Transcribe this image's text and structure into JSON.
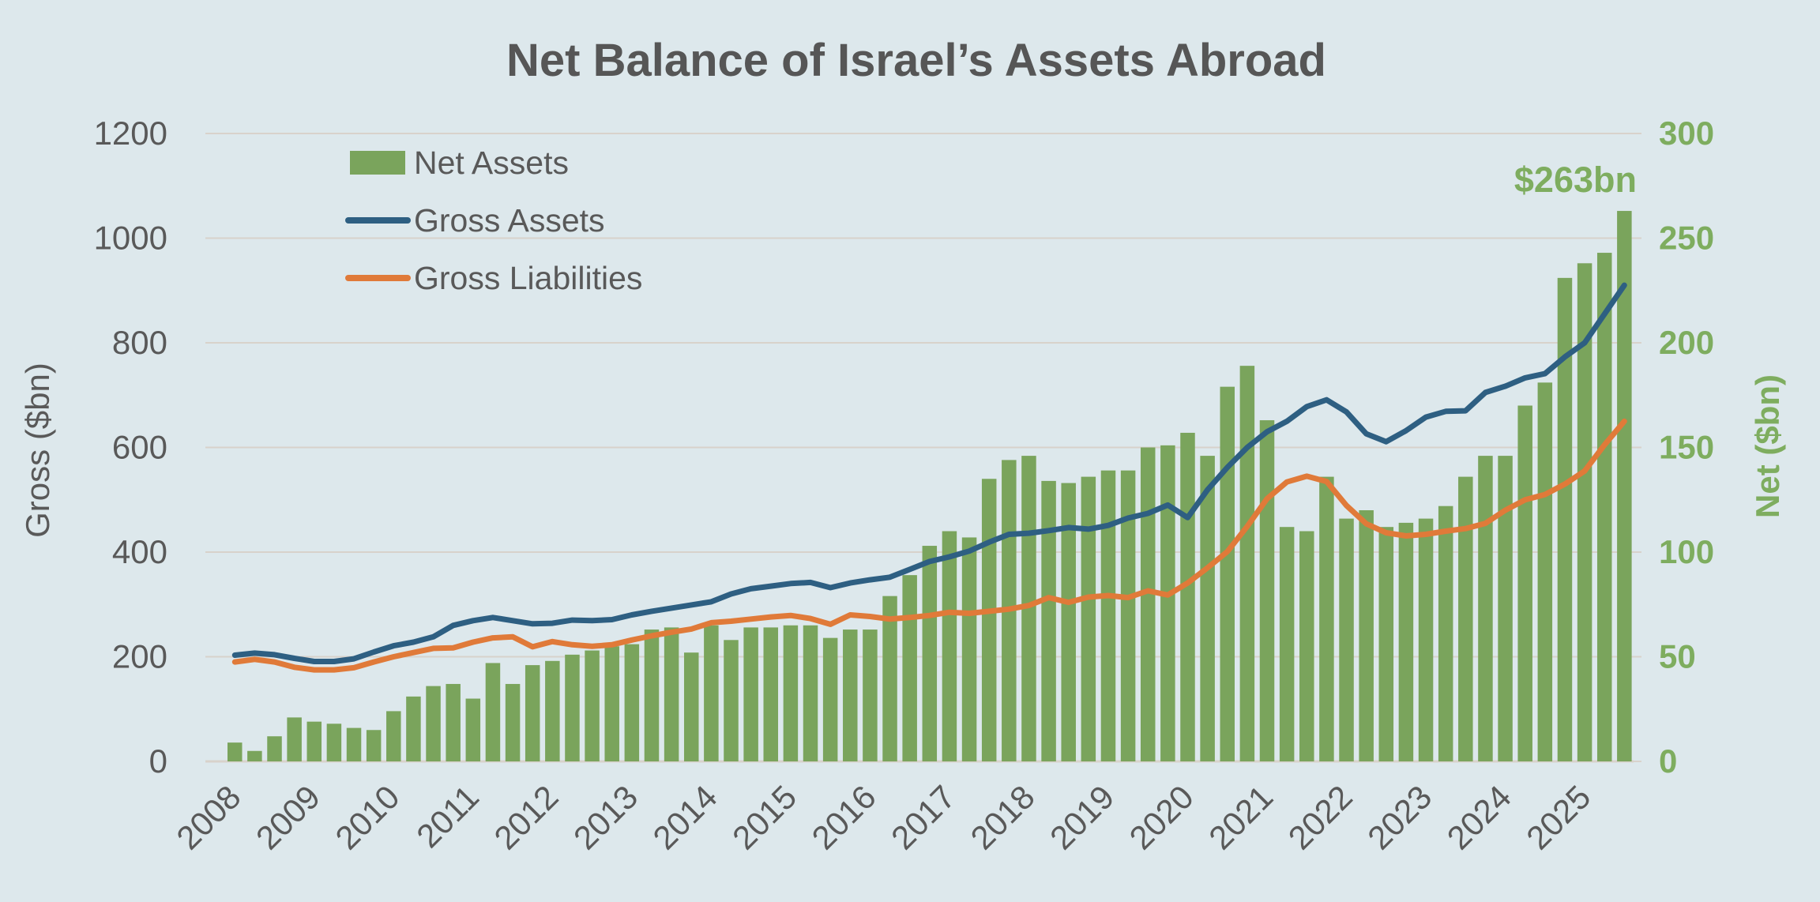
{
  "title": "Net Balance of Israel’s Assets Abroad",
  "annotation": {
    "text": "$263bn"
  },
  "legend": {
    "items": [
      {
        "label": "Net Assets",
        "swatch": "rect",
        "series": "net_assets"
      },
      {
        "label": "Gross Assets",
        "swatch": "line",
        "series": "gross_assets"
      },
      {
        "label": "Gross Liabilities",
        "swatch": "line",
        "series": "gross_liabilities"
      }
    ]
  },
  "left_axis": {
    "title": "Gross ($bn)",
    "ticks": [
      0,
      200,
      400,
      600,
      800,
      1000,
      1200
    ],
    "min": 0,
    "max": 1200
  },
  "right_axis": {
    "title": "Net ($bn)",
    "ticks": [
      0,
      50,
      100,
      150,
      200,
      250,
      300
    ],
    "min": 0,
    "max": 300
  },
  "x_axis": {
    "year_labels": [
      "2008",
      "2009",
      "2010",
      "2011",
      "2012",
      "2013",
      "2014",
      "2015",
      "2016",
      "2017",
      "2018",
      "2019",
      "2020",
      "2021",
      "2022",
      "2023",
      "2024",
      "2025"
    ],
    "bars_per_year": 4
  },
  "colors": {
    "background": "#dde8ec",
    "gridline": "#d8d2cb",
    "axis_line": "#cfc9c2",
    "bar_green": "#7aa45c",
    "green_text": "#7ead5f",
    "line_blue": "#2e5f82",
    "line_orange": "#e07a39",
    "text_gray": "#595959",
    "title_gray": "#565656"
  },
  "chart_data": {
    "type": "bar+line combo, quarterly",
    "start_period": "2008Q1",
    "end_period": "2025Q3",
    "frequency": "quarterly",
    "title": "Net Balance of Israel’s Assets Abroad",
    "xlabel": "",
    "ylabel_left": "Gross ($bn)",
    "ylabel_right": "Net ($bn)",
    "ylim_left": [
      0,
      1200
    ],
    "ylim_right": [
      0,
      300
    ],
    "legend_position": "top-left inside plot",
    "grid": "horizontal only",
    "series": [
      {
        "name": "Net Assets",
        "type": "bar",
        "axis": "right",
        "values": [
          9,
          5,
          12,
          21,
          19,
          18,
          16,
          15,
          24,
          31,
          36,
          37,
          30,
          47,
          37,
          46,
          48,
          51,
          53,
          55,
          56,
          63,
          64,
          52,
          65,
          58,
          64,
          64,
          65,
          65,
          59,
          63,
          63,
          79,
          89,
          103,
          110,
          107,
          135,
          144,
          146,
          134,
          133,
          136,
          139,
          139,
          150,
          151,
          157,
          146,
          179,
          189,
          163,
          112,
          110,
          136,
          116,
          120,
          112,
          114,
          116,
          122,
          136,
          146,
          146,
          170,
          181,
          231,
          238,
          243,
          263
        ]
      },
      {
        "name": "Gross Assets",
        "type": "line",
        "axis": "left",
        "values": [
          203,
          207,
          204,
          197,
          191,
          191,
          196,
          209,
          221,
          228,
          238,
          260,
          269,
          275,
          269,
          263,
          264,
          270,
          269,
          271,
          280,
          287,
          293,
          299,
          305,
          320,
          330,
          335,
          340,
          342,
          332,
          341,
          347,
          352,
          367,
          382,
          391,
          402,
          419,
          434,
          436,
          441,
          447,
          444,
          451,
          465,
          474,
          490,
          466,
          519,
          562,
          600,
          630,
          650,
          678,
          691,
          668,
          626,
          611,
          632,
          658,
          669,
          670,
          705,
          717,
          733,
          741,
          773,
          800,
          855,
          910
        ]
      },
      {
        "name": "Gross Liabilities",
        "type": "line",
        "axis": "left",
        "values": [
          190,
          195,
          190,
          180,
          175,
          175,
          179,
          190,
          200,
          208,
          216,
          217,
          228,
          236,
          238,
          219,
          229,
          223,
          220,
          223,
          232,
          240,
          247,
          253,
          265,
          268,
          272,
          276,
          279,
          273,
          262,
          280,
          277,
          272,
          275,
          279,
          285,
          283,
          287,
          291,
          298,
          313,
          304,
          314,
          317,
          313,
          326,
          318,
          341,
          370,
          401,
          449,
          502,
          534,
          545,
          535,
          489,
          454,
          437,
          431,
          434,
          440,
          445,
          455,
          480,
          500,
          510,
          530,
          555,
          605,
          650
        ]
      }
    ],
    "annotation": {
      "text": "$263bn",
      "attached_to": "last bar of Net Assets"
    }
  }
}
